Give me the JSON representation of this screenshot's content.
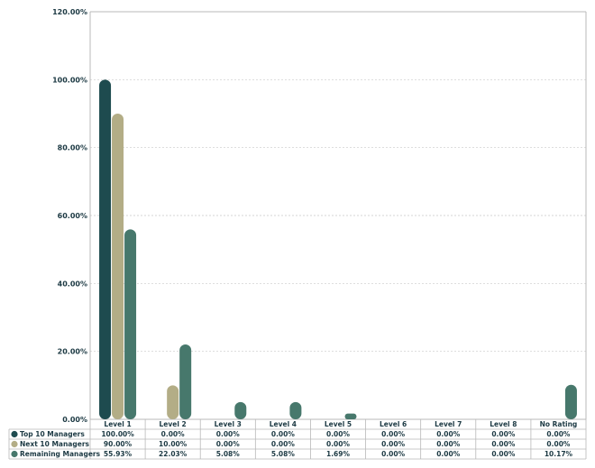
{
  "chart_data": {
    "type": "bar",
    "categories": [
      "Level 1",
      "Level 2",
      "Level 3",
      "Level 4",
      "Level 5",
      "Level 6",
      "Level 7",
      "Level 8",
      "No Rating"
    ],
    "series": [
      {
        "name": "Top 10 Managers",
        "color": "#1e4b4f",
        "values": [
          100.0,
          0.0,
          0.0,
          0.0,
          0.0,
          0.0,
          0.0,
          0.0,
          0.0
        ],
        "labels": [
          "100.00%",
          "0.00%",
          "0.00%",
          "0.00%",
          "0.00%",
          "0.00%",
          "0.00%",
          "0.00%",
          "0.00%"
        ]
      },
      {
        "name": "Next 10 Managers",
        "color": "#b3ad86",
        "values": [
          90.0,
          10.0,
          0.0,
          0.0,
          0.0,
          0.0,
          0.0,
          0.0,
          0.0
        ],
        "labels": [
          "90.00%",
          "10.00%",
          "0.00%",
          "0.00%",
          "0.00%",
          "0.00%",
          "0.00%",
          "0.00%",
          "0.00%"
        ]
      },
      {
        "name": "Remaining Managers",
        "color": "#47786c",
        "values": [
          55.93,
          22.03,
          5.08,
          5.08,
          1.69,
          0.0,
          0.0,
          0.0,
          10.17
        ],
        "labels": [
          "55.93%",
          "22.03%",
          "5.08%",
          "5.08%",
          "1.69%",
          "0.00%",
          "0.00%",
          "0.00%",
          "10.17%"
        ]
      }
    ],
    "yticks": [
      "0.00%",
      "20.00%",
      "40.00%",
      "60.00%",
      "80.00%",
      "100.00%",
      "120.00%"
    ],
    "ylim": [
      0,
      120
    ],
    "grid": true,
    "legend": "data-table-below"
  }
}
